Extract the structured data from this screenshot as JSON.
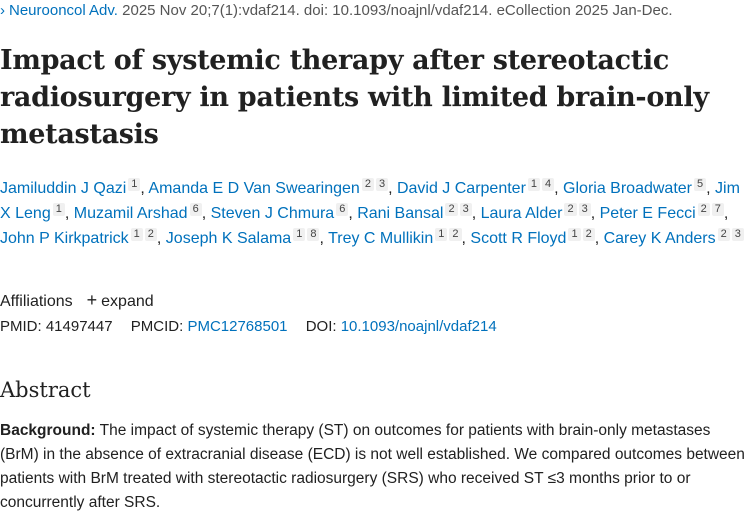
{
  "citation": {
    "journal": "Neurooncol Adv.",
    "details": "2025 Nov 20;7(1):vdaf214. doi: 10.1093/noajnl/vdaf214. eCollection 2025 Jan-Dec."
  },
  "title": "Impact of systemic therapy after stereotactic radiosurgery in patients with limited brain-only metastasis",
  "authors": [
    {
      "name": "Jamiluddin J Qazi",
      "sups": [
        "1"
      ]
    },
    {
      "name": "Amanda E D Van Swearingen",
      "sups": [
        "2",
        "3"
      ]
    },
    {
      "name": "David J Carpenter",
      "sups": [
        "1",
        "4"
      ]
    },
    {
      "name": "Gloria Broadwater",
      "sups": [
        "5"
      ]
    },
    {
      "name": "Jim X Leng",
      "sups": [
        "1"
      ]
    },
    {
      "name": "Muzamil Arshad",
      "sups": [
        "6"
      ]
    },
    {
      "name": "Steven J Chmura",
      "sups": [
        "6"
      ]
    },
    {
      "name": "Rani Bansal",
      "sups": [
        "2",
        "3"
      ]
    },
    {
      "name": "Laura Alder",
      "sups": [
        "2",
        "3"
      ]
    },
    {
      "name": "Peter E Fecci",
      "sups": [
        "2",
        "7"
      ]
    },
    {
      "name": "John P Kirkpatrick",
      "sups": [
        "1",
        "2"
      ]
    },
    {
      "name": "Joseph K Salama",
      "sups": [
        "1",
        "8"
      ]
    },
    {
      "name": "Trey C Mullikin",
      "sups": [
        "1",
        "2"
      ]
    },
    {
      "name": "Scott R Floyd",
      "sups": [
        "1",
        "2"
      ]
    },
    {
      "name": "Carey K Anders",
      "sups": [
        "2",
        "3"
      ]
    }
  ],
  "affiliations": {
    "label": "Affiliations",
    "expand_icon": "+",
    "expand_label": "expand"
  },
  "ids": {
    "pmid_label": "PMID:",
    "pmid": "41497447",
    "pmcid_label": "PMCID:",
    "pmcid": "PMC12768501",
    "doi_label": "DOI:",
    "doi": "10.1093/noajnl/vdaf214"
  },
  "abstract": {
    "heading": "Abstract",
    "background_label": "Background:",
    "background_text": " The impact of systemic therapy (ST) on outcomes for patients with brain-only metastases (BrM) in the absence of extracranial disease (ECD) is not well established. We compared outcomes between patients with BrM treated with stereotactic radiosurgery (SRS) who received ST ≤3 months prior to or concurrently after SRS."
  }
}
